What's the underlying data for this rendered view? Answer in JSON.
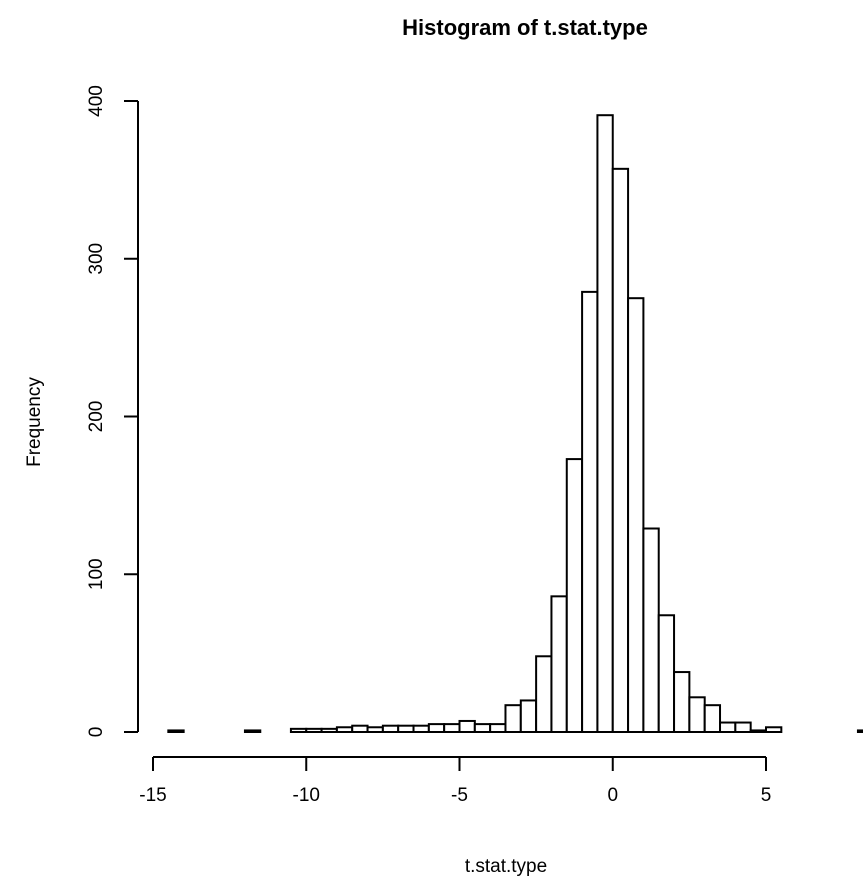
{
  "chart_data": {
    "type": "bar",
    "title": "Histogram of t.stat.type",
    "xlabel": "t.stat.type",
    "ylabel": "Frequency",
    "xlim": [
      -15,
      8.5
    ],
    "ylim": [
      0,
      400
    ],
    "bin_width": 0.5,
    "bins": [
      {
        "x0": -14.5,
        "x1": -14,
        "count": 1
      },
      {
        "x0": -12,
        "x1": -11.5,
        "count": 1
      },
      {
        "x0": -10.5,
        "x1": -10,
        "count": 2
      },
      {
        "x0": -10,
        "x1": -9.5,
        "count": 2
      },
      {
        "x0": -9.5,
        "x1": -9,
        "count": 2
      },
      {
        "x0": -9,
        "x1": -8.5,
        "count": 3
      },
      {
        "x0": -8.5,
        "x1": -8,
        "count": 4
      },
      {
        "x0": -8,
        "x1": -7.5,
        "count": 3
      },
      {
        "x0": -7.5,
        "x1": -7,
        "count": 4
      },
      {
        "x0": -7,
        "x1": -6.5,
        "count": 4
      },
      {
        "x0": -6.5,
        "x1": -6,
        "count": 4
      },
      {
        "x0": -6,
        "x1": -5.5,
        "count": 5
      },
      {
        "x0": -5.5,
        "x1": -5,
        "count": 5
      },
      {
        "x0": -5,
        "x1": -4.5,
        "count": 7
      },
      {
        "x0": -4.5,
        "x1": -4,
        "count": 5
      },
      {
        "x0": -4,
        "x1": -3.5,
        "count": 5
      },
      {
        "x0": -3.5,
        "x1": -3,
        "count": 17
      },
      {
        "x0": -3,
        "x1": -2.5,
        "count": 20
      },
      {
        "x0": -2.5,
        "x1": -2,
        "count": 48
      },
      {
        "x0": -2,
        "x1": -1.5,
        "count": 86
      },
      {
        "x0": -1.5,
        "x1": -1,
        "count": 173
      },
      {
        "x0": -1,
        "x1": -0.5,
        "count": 279
      },
      {
        "x0": -0.5,
        "x1": 0,
        "count": 391
      },
      {
        "x0": 0,
        "x1": 0.5,
        "count": 357
      },
      {
        "x0": 0.5,
        "x1": 1,
        "count": 275
      },
      {
        "x0": 1,
        "x1": 1.5,
        "count": 129
      },
      {
        "x0": 1.5,
        "x1": 2,
        "count": 74
      },
      {
        "x0": 2,
        "x1": 2.5,
        "count": 38
      },
      {
        "x0": 2.5,
        "x1": 3,
        "count": 22
      },
      {
        "x0": 3,
        "x1": 3.5,
        "count": 17
      },
      {
        "x0": 3.5,
        "x1": 4,
        "count": 6
      },
      {
        "x0": 4,
        "x1": 4.5,
        "count": 6
      },
      {
        "x0": 4.5,
        "x1": 5,
        "count": 1
      },
      {
        "x0": 5,
        "x1": 5.5,
        "count": 3
      },
      {
        "x0": 8,
        "x1": 8.5,
        "count": 1
      }
    ],
    "x_ticks": [
      {
        "value": -15,
        "label": "-15"
      },
      {
        "value": -10,
        "label": "-10"
      },
      {
        "value": -5,
        "label": "-5"
      },
      {
        "value": 0,
        "label": "0"
      },
      {
        "value": 5,
        "label": "5"
      }
    ],
    "y_ticks": [
      {
        "value": 0,
        "label": "0"
      },
      {
        "value": 100,
        "label": "100"
      },
      {
        "value": 200,
        "label": "200"
      },
      {
        "value": 300,
        "label": "300"
      },
      {
        "value": 400,
        "label": "400"
      }
    ],
    "grid": false,
    "legend": "none",
    "bar_fill": "#ffffff",
    "bar_stroke": "#000000"
  }
}
